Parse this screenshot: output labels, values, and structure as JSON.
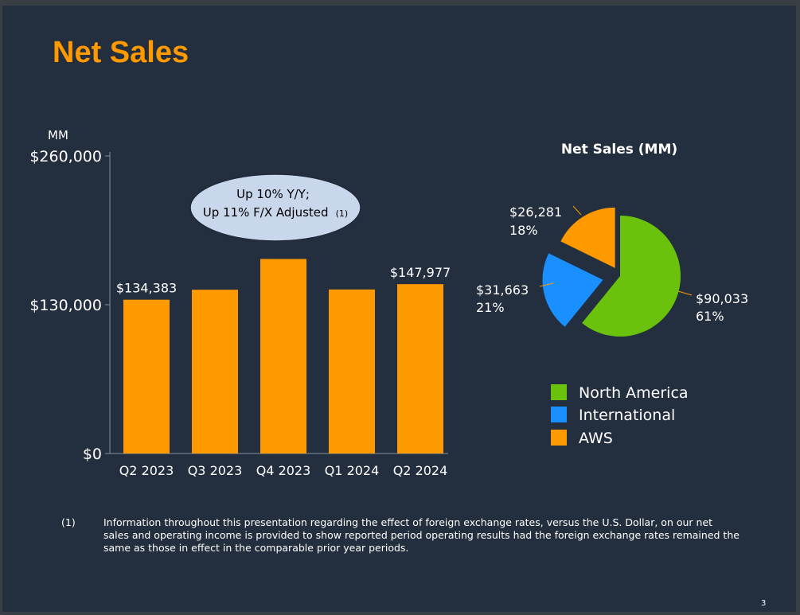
{
  "slide": {
    "title": "Net Sales",
    "page_number": "3",
    "footnote_marker": "(1)",
    "footnote_text": "Information throughout this presentation regarding the effect of foreign exchange rates, versus the U.S. Dollar, on our net sales and operating income is provided to show reported period operating results had the foreign exchange rates remained the same as those in effect in the comparable prior year periods."
  },
  "chart_data": [
    {
      "type": "bar",
      "title": "",
      "ylabel": "MM",
      "categories": [
        "Q2 2023",
        "Q3 2023",
        "Q4 2023",
        "Q1 2024",
        "Q2 2024"
      ],
      "values": [
        134383,
        143083,
        169961,
        143313,
        147977
      ],
      "data_labels": [
        "$134,383",
        "",
        "",
        "",
        "$147,977"
      ],
      "ylim": [
        0,
        260000
      ],
      "yticks": [
        0,
        130000,
        260000
      ],
      "ytick_labels": [
        "$0",
        "$130,000",
        "$260,000"
      ],
      "bar_color": "#ff9900",
      "grid": false,
      "callout": {
        "line1": "Up 10% Y/Y;",
        "line2": "Up 11% F/X Adjusted",
        "note": "(1)"
      }
    },
    {
      "type": "pie",
      "title": "Net Sales (MM)",
      "slices": [
        {
          "name": "North America",
          "value": 90033,
          "value_label": "$90,033",
          "percent_label": "61%",
          "color": "#6ac20c"
        },
        {
          "name": "International",
          "value": 31663,
          "value_label": "$31,663",
          "percent_label": "21%",
          "color": "#1a8fff"
        },
        {
          "name": "AWS",
          "value": 26281,
          "value_label": "$26,281",
          "percent_label": "18%",
          "color": "#ff9900"
        }
      ],
      "legend_position": "bottom"
    }
  ]
}
